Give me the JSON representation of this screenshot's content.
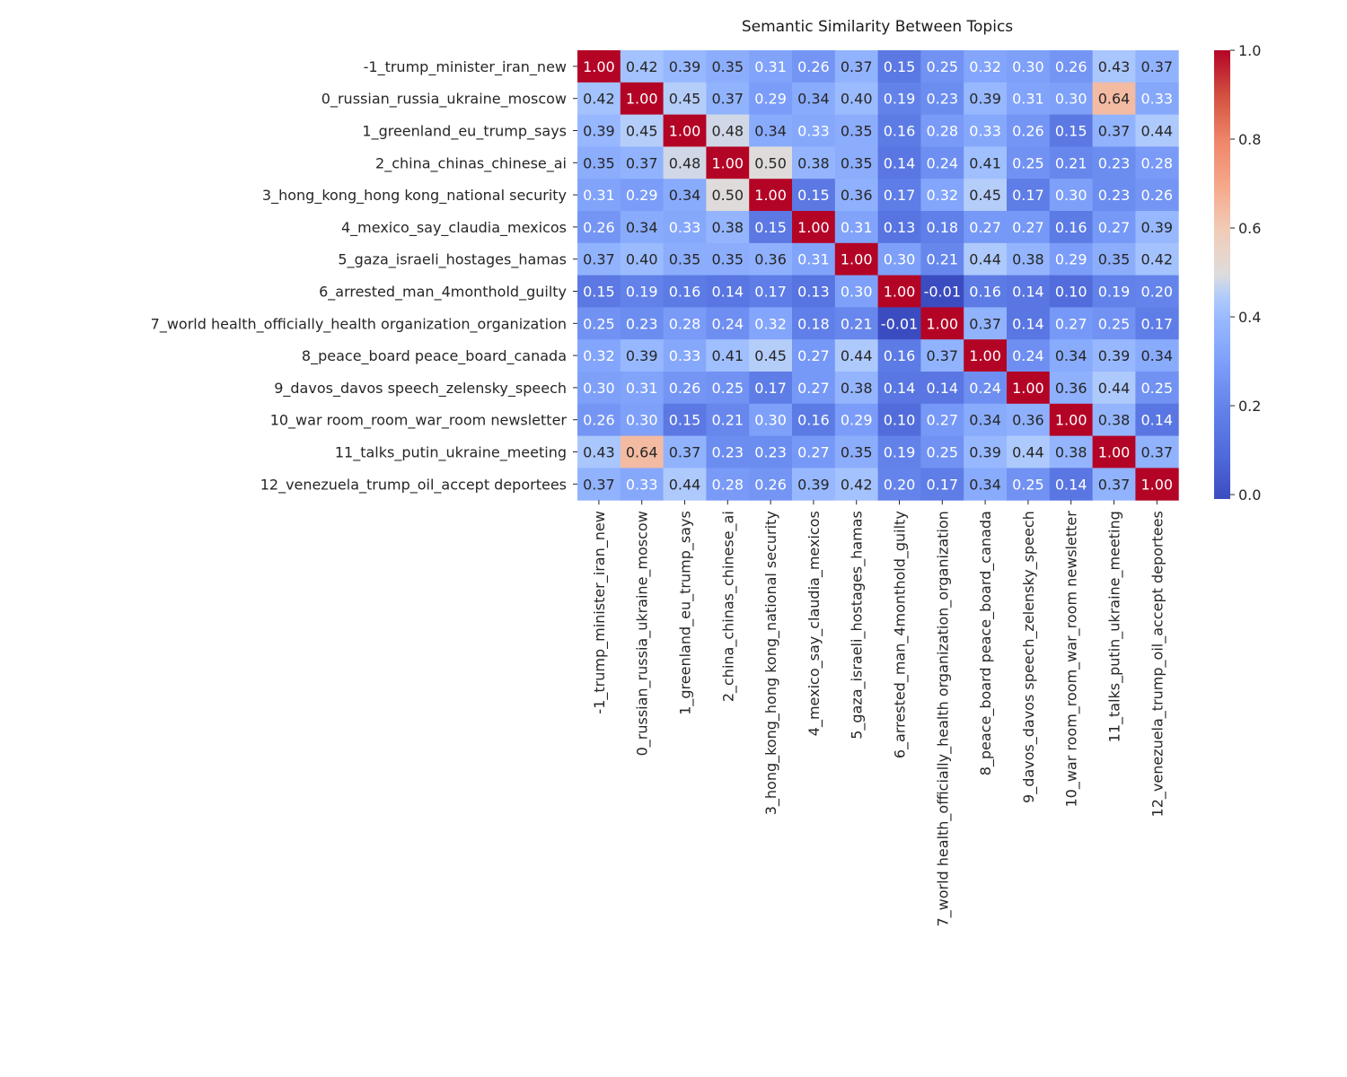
{
  "chart_data": {
    "type": "heatmap",
    "title": "Semantic Similarity Between Topics",
    "colormap": "coolwarm",
    "value_range": [
      -0.01,
      1.0
    ],
    "colorbar": {
      "ticks": [
        "0.0",
        "0.2",
        "0.4",
        "0.6",
        "0.8",
        "1.0"
      ],
      "placement": "right"
    },
    "labels": [
      "-1_trump_minister_iran_new",
      "0_russian_russia_ukraine_moscow",
      "1_greenland_eu_trump_says",
      "2_china_chinas_chinese_ai",
      "3_hong_kong_hong kong_national security",
      "4_mexico_say_claudia_mexicos",
      "5_gaza_israeli_hostages_hamas",
      "6_arrested_man_4monthold_guilty",
      "7_world health_officially_health organization_organization",
      "8_peace_board peace_board_canada",
      "9_davos_davos speech_zelensky_speech",
      "10_war room_room_war_room newsletter",
      "11_talks_putin_ukraine_meeting",
      "12_venezuela_trump_oil_accept deportees"
    ],
    "values": [
      [
        1.0,
        0.42,
        0.39,
        0.35,
        0.31,
        0.26,
        0.37,
        0.15,
        0.25,
        0.32,
        0.3,
        0.26,
        0.43,
        0.37
      ],
      [
        0.42,
        1.0,
        0.45,
        0.37,
        0.29,
        0.34,
        0.4,
        0.19,
        0.23,
        0.39,
        0.31,
        0.3,
        0.64,
        0.33
      ],
      [
        0.39,
        0.45,
        1.0,
        0.48,
        0.34,
        0.33,
        0.35,
        0.16,
        0.28,
        0.33,
        0.26,
        0.15,
        0.37,
        0.44
      ],
      [
        0.35,
        0.37,
        0.48,
        1.0,
        0.5,
        0.38,
        0.35,
        0.14,
        0.24,
        0.41,
        0.25,
        0.21,
        0.23,
        0.28
      ],
      [
        0.31,
        0.29,
        0.34,
        0.5,
        1.0,
        0.15,
        0.36,
        0.17,
        0.32,
        0.45,
        0.17,
        0.3,
        0.23,
        0.26
      ],
      [
        0.26,
        0.34,
        0.33,
        0.38,
        0.15,
        1.0,
        0.31,
        0.13,
        0.18,
        0.27,
        0.27,
        0.16,
        0.27,
        0.39
      ],
      [
        0.37,
        0.4,
        0.35,
        0.35,
        0.36,
        0.31,
        1.0,
        0.3,
        0.21,
        0.44,
        0.38,
        0.29,
        0.35,
        0.42
      ],
      [
        0.15,
        0.19,
        0.16,
        0.14,
        0.17,
        0.13,
        0.3,
        1.0,
        -0.01,
        0.16,
        0.14,
        0.1,
        0.19,
        0.2
      ],
      [
        0.25,
        0.23,
        0.28,
        0.24,
        0.32,
        0.18,
        0.21,
        -0.01,
        1.0,
        0.37,
        0.14,
        0.27,
        0.25,
        0.17
      ],
      [
        0.32,
        0.39,
        0.33,
        0.41,
        0.45,
        0.27,
        0.44,
        0.16,
        0.37,
        1.0,
        0.24,
        0.34,
        0.39,
        0.34
      ],
      [
        0.3,
        0.31,
        0.26,
        0.25,
        0.17,
        0.27,
        0.38,
        0.14,
        0.14,
        0.24,
        1.0,
        0.36,
        0.44,
        0.25
      ],
      [
        0.26,
        0.3,
        0.15,
        0.21,
        0.3,
        0.16,
        0.29,
        0.1,
        0.27,
        0.34,
        0.36,
        1.0,
        0.38,
        0.14
      ],
      [
        0.43,
        0.64,
        0.37,
        0.23,
        0.23,
        0.27,
        0.35,
        0.19,
        0.25,
        0.39,
        0.44,
        0.38,
        1.0,
        0.37
      ],
      [
        0.37,
        0.33,
        0.44,
        0.28,
        0.26,
        0.39,
        0.42,
        0.2,
        0.17,
        0.34,
        0.25,
        0.14,
        0.37,
        1.0
      ]
    ]
  }
}
